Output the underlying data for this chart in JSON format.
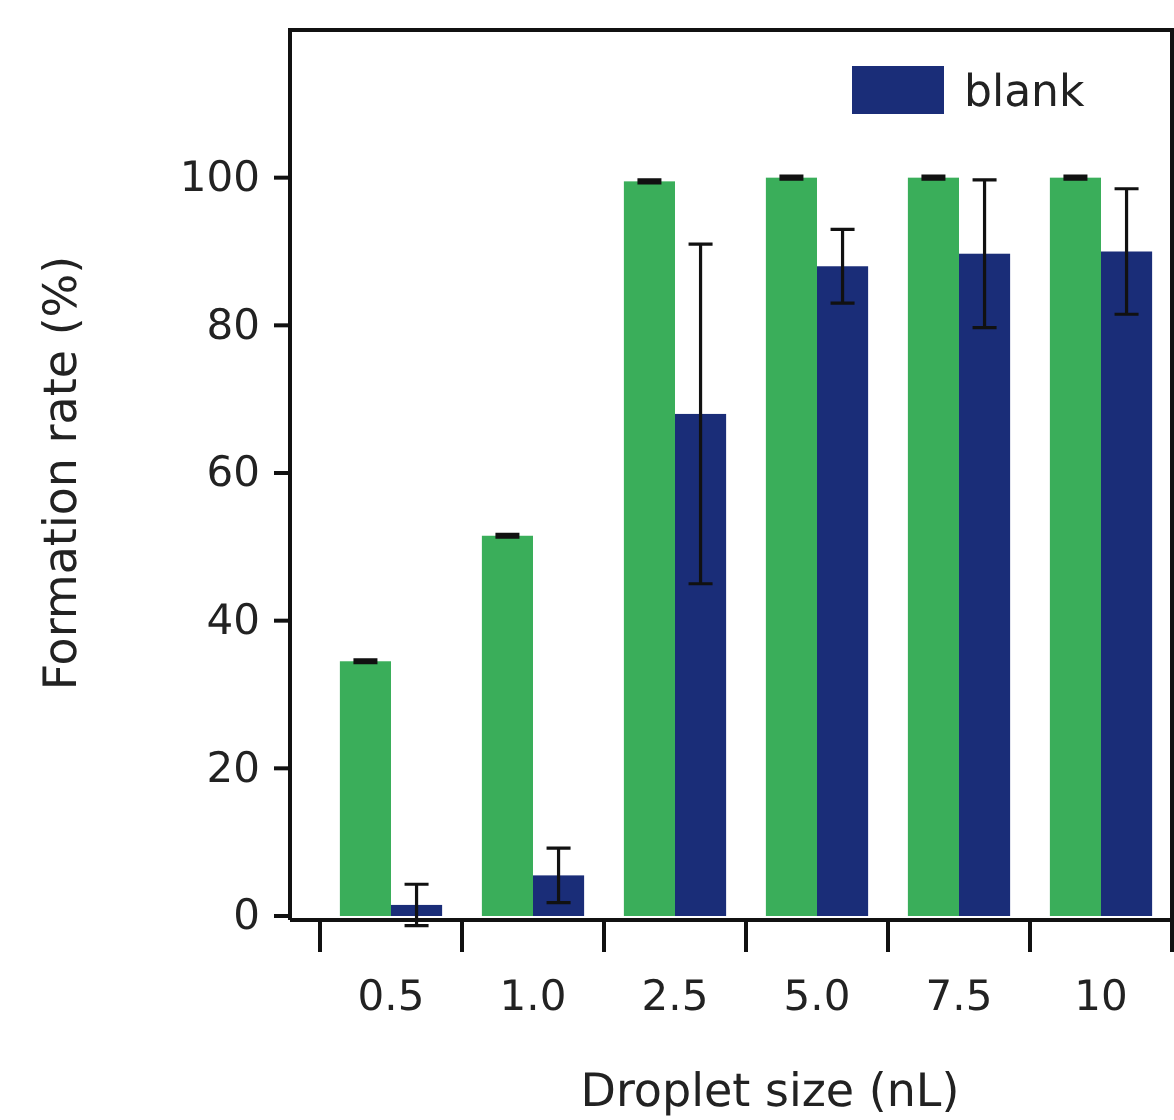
{
  "chart_data": {
    "type": "bar",
    "xlabel": "Droplet size (nL)",
    "ylabel": "Formation rate (%)",
    "categories": [
      "0.5",
      "1.0",
      "2.5",
      "5.0",
      "7.5",
      "10"
    ],
    "ylim": [
      0,
      120
    ],
    "yticks": [
      0,
      20,
      40,
      60,
      80,
      100
    ],
    "legend": "top right",
    "grid": false,
    "series": [
      {
        "color": "#3aae5a",
        "values": [
          34.5,
          51.5,
          99.5,
          100,
          100,
          100
        ],
        "errors": [
          0.2,
          0.2,
          0.2,
          0.2,
          0.2,
          0.2
        ]
      },
      {
        "name": "blank",
        "color": "#1a2d78",
        "values": [
          1.5,
          5.5,
          68,
          88,
          89.7,
          90
        ],
        "errors": [
          2.8,
          3.7,
          23,
          5,
          10,
          8.5
        ]
      }
    ]
  }
}
